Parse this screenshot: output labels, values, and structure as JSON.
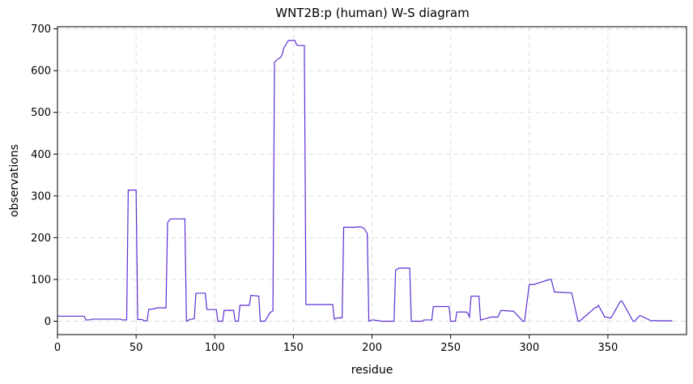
{
  "chart_data": {
    "type": "line",
    "title": "WNT2B:p (human) W-S diagram",
    "xlabel": "residue",
    "ylabel": "observations",
    "xlim": [
      0,
      400
    ],
    "ylim": [
      -32,
      705
    ],
    "xticks": [
      0,
      50,
      100,
      150,
      200,
      250,
      300,
      350
    ],
    "yticks": [
      0,
      100,
      200,
      300,
      400,
      500,
      600,
      700
    ],
    "grid": true,
    "line_color": "#5b2fd1",
    "x": [
      0,
      17,
      18,
      20,
      22,
      40,
      41,
      44,
      45,
      50,
      51,
      54,
      55,
      57,
      58,
      62,
      63,
      69,
      70,
      71,
      72,
      74,
      81,
      82,
      84,
      87,
      88,
      94,
      95,
      101,
      102,
      105,
      106,
      112,
      113,
      115,
      116,
      122,
      123,
      128,
      129,
      132,
      135,
      137,
      138,
      140,
      142,
      143,
      144,
      145,
      146,
      147,
      148,
      151,
      152,
      153,
      157,
      158,
      175,
      176,
      178,
      181,
      182,
      190,
      191,
      193,
      195,
      197,
      198,
      200,
      201,
      206,
      207,
      214,
      215,
      217,
      224,
      225,
      232,
      233,
      238,
      239,
      249,
      250,
      253,
      254,
      260,
      261,
      262,
      263,
      268,
      269,
      276,
      277,
      280,
      282,
      289,
      290,
      296,
      297,
      300,
      301,
      303,
      313,
      314,
      316,
      326,
      327,
      331,
      332,
      342,
      343,
      344,
      348,
      349,
      351,
      352,
      358,
      359,
      366,
      367,
      370,
      371,
      378,
      379,
      382,
      391
    ],
    "y": [
      12,
      12,
      3,
      3,
      5,
      5,
      3,
      3,
      314,
      314,
      4,
      4,
      1,
      1,
      28,
      30,
      32,
      32,
      235,
      242,
      245,
      245,
      245,
      0,
      4,
      6,
      67,
      67,
      28,
      28,
      0,
      0,
      26,
      26,
      0,
      0,
      38,
      38,
      62,
      60,
      0,
      0,
      20,
      25,
      620,
      627,
      632,
      640,
      655,
      660,
      668,
      672,
      672,
      672,
      662,
      660,
      660,
      40,
      40,
      5,
      8,
      8,
      225,
      225,
      226,
      226,
      222,
      210,
      0,
      3,
      3,
      0,
      0,
      0,
      122,
      127,
      127,
      0,
      0,
      3,
      3,
      35,
      35,
      0,
      0,
      22,
      22,
      18,
      10,
      60,
      60,
      3,
      10,
      10,
      10,
      26,
      24,
      24,
      0,
      0,
      88,
      88,
      88,
      100,
      100,
      70,
      68,
      68,
      0,
      0,
      33,
      33,
      38,
      10,
      10,
      8,
      8,
      48,
      48,
      0,
      0,
      13,
      13,
      0,
      2,
      1,
      1
    ]
  }
}
